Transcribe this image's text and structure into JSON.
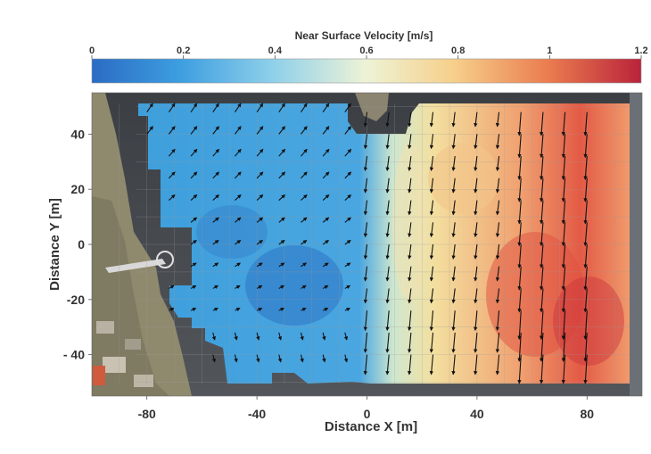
{
  "chart_data": {
    "type": "heatmap",
    "colorbar": {
      "title": "Near Surface Velocity [m/s]",
      "range": [
        0,
        1.2
      ],
      "ticks": [
        0,
        0.2,
        0.4,
        0.6,
        0.8,
        1,
        1.2
      ],
      "tick_labels": [
        "0",
        "0.2",
        "0.4",
        "0.6",
        "0.8",
        "1",
        "1.2"
      ],
      "colors": [
        "#2b6cc4",
        "#3d9ee0",
        "#8fd0ea",
        "#eef3d6",
        "#f6cf8a",
        "#eb7c50",
        "#b9233a"
      ]
    },
    "xlabel": "Distance X [m]",
    "ylabel": "Distance Y [m]",
    "xlim": [
      -100,
      100
    ],
    "ylim": [
      -55,
      55
    ],
    "x_ticks": [
      -80,
      -40,
      0,
      40,
      80
    ],
    "x_tick_labels": [
      "-80",
      "-40",
      "0",
      "40",
      "80"
    ],
    "y_ticks": [
      40,
      20,
      0,
      -20,
      -40
    ],
    "y_tick_labels": [
      "40",
      "20",
      "0",
      "-20",
      "- 40"
    ],
    "background": "aerial photograph of river with embankment",
    "grid": true,
    "vectors": "arrows show flow direction; slow weakly NE flow for x<0, strong southward flow for x>0"
  }
}
